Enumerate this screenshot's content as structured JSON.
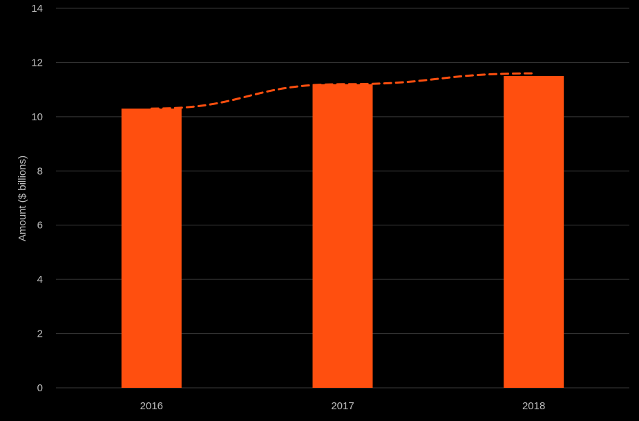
{
  "chart_data": {
    "type": "bar",
    "categories": [
      "2016",
      "2017",
      "2018"
    ],
    "values": [
      10.3,
      11.2,
      11.5
    ],
    "ylabel": "Amount ($ billions)",
    "xlabel": "",
    "title": "",
    "ylim": [
      0,
      14
    ],
    "yticks": [
      0,
      2,
      4,
      6,
      8,
      10,
      12,
      14
    ],
    "grid": true,
    "legend": "none",
    "trendline": {
      "style": "dashed",
      "x": [
        "2016",
        "2017",
        "2018"
      ],
      "y": [
        10.3,
        11.2,
        11.6
      ]
    },
    "colors": {
      "background": "#000000",
      "bar": "#ff4f0f",
      "trendline": "#ff4f0f",
      "grid": "#3a3a3a",
      "text": "#bfbfbf"
    }
  }
}
